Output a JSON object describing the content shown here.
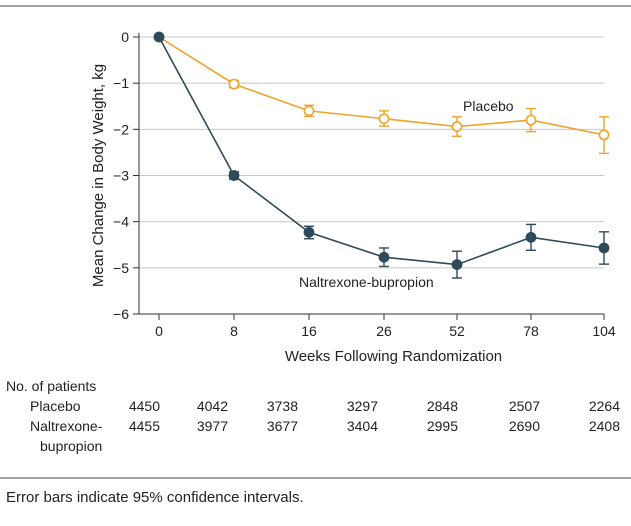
{
  "chart_data": {
    "type": "line",
    "xlabel": "Weeks Following Randomization",
    "ylabel": "Mean Change in Body Weight, kg",
    "x_ticks": [
      "0",
      "8",
      "16",
      "26",
      "52",
      "78",
      "104"
    ],
    "y_ticks": [
      "0",
      "-1",
      "-2",
      "-3",
      "-4",
      "-5",
      "-6"
    ],
    "ylim": [
      -6,
      0
    ],
    "grid": "horizontal",
    "series": [
      {
        "name": "Placebo",
        "color": "#f0a32a",
        "marker": "open-circle",
        "values": [
          0,
          -1.02,
          -1.6,
          -1.77,
          -1.94,
          -1.8,
          -2.12
        ],
        "ci_low": [
          0,
          -1.1,
          -1.72,
          -1.93,
          -2.15,
          -2.05,
          -2.52
        ],
        "ci_high": [
          0,
          -0.94,
          -1.48,
          -1.6,
          -1.73,
          -1.55,
          -1.73
        ]
      },
      {
        "name": "Naltrexone-bupropion",
        "color": "#2f4a5a",
        "marker": "filled-circle",
        "values": [
          0,
          -3.0,
          -4.23,
          -4.77,
          -4.93,
          -4.34,
          -4.57
        ],
        "ci_low": [
          0,
          -3.08,
          -4.37,
          -4.97,
          -5.22,
          -4.62,
          -4.92
        ],
        "ci_high": [
          0,
          -2.92,
          -4.1,
          -4.57,
          -4.64,
          -4.06,
          -4.22
        ]
      }
    ]
  },
  "patients": {
    "heading": "No. of patients",
    "rows": [
      {
        "label_lines": [
          "Placebo"
        ],
        "counts": [
          "4450",
          "4042",
          "3738",
          "3297",
          "2848",
          "2507",
          "2264"
        ]
      },
      {
        "label_lines": [
          "Naltrexone-",
          "bupropion"
        ],
        "counts": [
          "4455",
          "3977",
          "3677",
          "3404",
          "2995",
          "2690",
          "2408"
        ]
      }
    ]
  },
  "caption": "Error bars indicate 95% confidence intervals."
}
